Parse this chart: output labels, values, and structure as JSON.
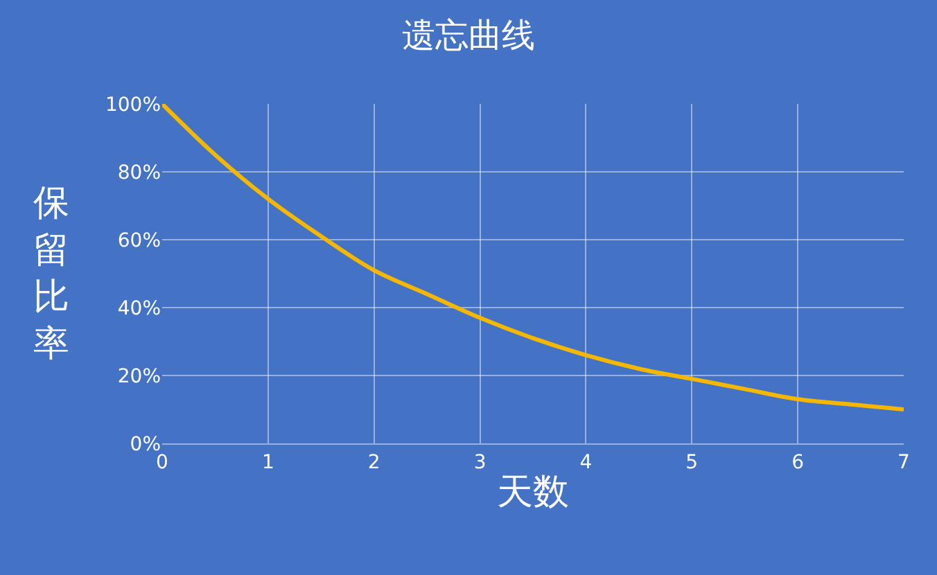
{
  "chart_data": {
    "type": "line",
    "title": "遗忘曲线",
    "xlabel": "天数",
    "ylabel": "保留比率",
    "x": [
      0,
      0.5,
      1,
      1.5,
      2,
      2.5,
      3,
      3.5,
      4,
      4.5,
      5,
      5.5,
      6,
      6.5,
      7
    ],
    "series": [
      {
        "color": "#f5b700",
        "values": [
          100,
          85,
          72,
          61,
          51,
          44,
          37,
          31,
          26,
          22,
          19,
          16,
          13,
          11.5,
          10
        ]
      }
    ],
    "xlim": [
      0,
      7
    ],
    "xticks": [
      0,
      1,
      2,
      3,
      4,
      5,
      6,
      7
    ],
    "ylim": [
      0,
      100
    ],
    "yticks": [
      {
        "value": 0,
        "label": "0%"
      },
      {
        "value": 20,
        "label": "20%"
      },
      {
        "value": 40,
        "label": "40%"
      },
      {
        "value": 60,
        "label": "60%"
      },
      {
        "value": 80,
        "label": "80%"
      },
      {
        "value": 100,
        "label": "100%"
      }
    ],
    "grid": true,
    "marker": "none",
    "line_style": "solid"
  }
}
